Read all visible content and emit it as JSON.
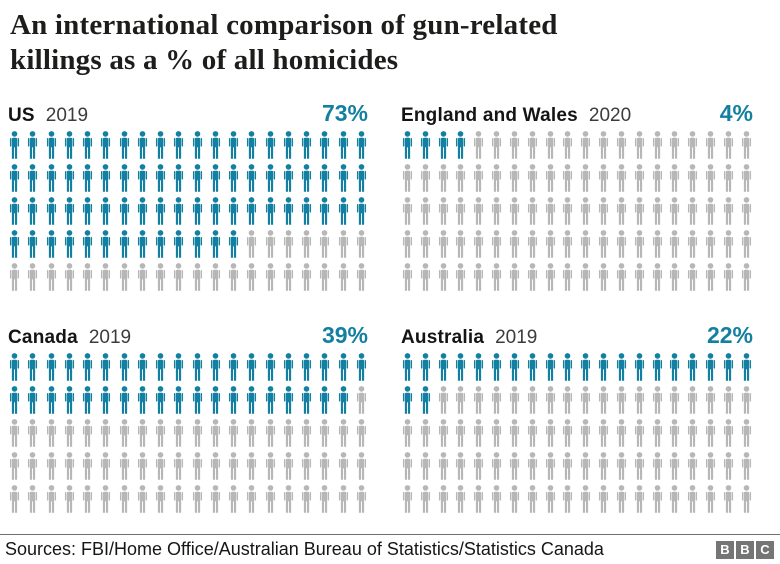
{
  "header": {
    "title": "An international comparison of gun-related killings as a % of all homicides",
    "title_lines": [
      "An international comparison of gun-related",
      "killings as a % of all homicides"
    ]
  },
  "chart_data": {
    "type": "pictogram",
    "title": "An international comparison of gun-related killings as a % of all homicides",
    "unit": "%",
    "icons_total": 100,
    "icons_per_row": 20,
    "icon": "person-icon",
    "filled_color": "#1380A1",
    "empty_color": "#b7b7b7",
    "series": [
      {
        "label": "US",
        "year": "2019",
        "value": 73,
        "pct_label": "73%"
      },
      {
        "label": "England and Wales",
        "year": "2020",
        "value": 4,
        "pct_label": "4%"
      },
      {
        "label": "Canada",
        "year": "2019",
        "value": 39,
        "pct_label": "39%"
      },
      {
        "label": "Australia",
        "year": "2019",
        "value": 22,
        "pct_label": "22%"
      }
    ]
  },
  "footer": {
    "sources": "Sources: FBI/Home Office/Australian Bureau of Statistics/Statistics Canada",
    "logo_letters": [
      "B",
      "B",
      "C"
    ]
  }
}
